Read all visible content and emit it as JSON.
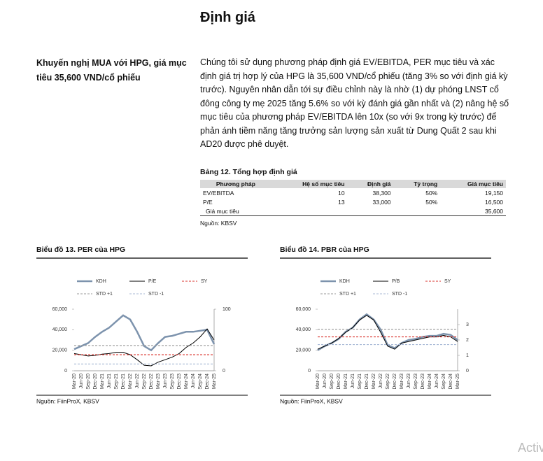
{
  "title": "Định giá",
  "sidebar": "Khuyến nghị MUA với HPG, giá mục tiêu 35,600 VND/cổ phiếu",
  "body": "Chúng tôi sử dụng phương pháp định giá EV/EBITDA, PER mục tiêu và xác định giá trị hợp lý của HPG là 35,600 VND/cổ phiếu (tăng 3% so với định giá kỳ trước). Nguyên nhân dẫn tới sự điều chỉnh này là nhờ (1) dự phóng LNST cổ đông công ty mẹ 2025 tăng 5.6% so với kỳ đánh giá gần nhất và (2) nâng hệ số mục tiêu của phương pháp EV/EBITDA lên 10x (so với 9x trong kỳ trước) để phản ánh tiềm năng tăng trưởng sản lượng sản xuất từ Dung Quất 2 sau khi AD20 được phê duyệt.",
  "table": {
    "title": "Bảng 12. Tổng hợp định giá",
    "headers": [
      "Phương pháp",
      "Hệ số mục tiêu",
      "Định giá",
      "Tỷ trọng",
      "Giá mục tiêu"
    ],
    "rows": [
      [
        "EV/EBITDA",
        "10",
        "38,300",
        "50%",
        "19,150"
      ],
      [
        "P/E",
        "13",
        "33,000",
        "50%",
        "16,500"
      ],
      [
        "Giá mục tiêu",
        null,
        null,
        null,
        "35,600"
      ]
    ],
    "source": "Nguồn: KBSV"
  },
  "chart_data": [
    {
      "type": "line",
      "title": "Biểu đồ 13. PER của HPG",
      "source": "Nguồn: FiinProX, KBSV",
      "categories": [
        "Mar-20",
        "Jun-20",
        "Sep-20",
        "Dec-20",
        "Mar-21",
        "Jun-21",
        "Sep-21",
        "Dec-21",
        "Mar-22",
        "Jun-22",
        "Sep-22",
        "Dec-22",
        "Mar-23",
        "Jun-23",
        "Sep-23",
        "Dec-23",
        "Mar-24",
        "Jun-24",
        "Sep-24",
        "Dec-24",
        "Mar-25"
      ],
      "ylim": [
        0,
        60000
      ],
      "yticks": [
        0,
        {
          "value": 20000,
          "label": "20,000"
        },
        {
          "value": 40000,
          "label": "40,000"
        },
        {
          "value": 60000,
          "label": "60,000"
        }
      ],
      "y2lim": [
        0,
        100
      ],
      "y2ticks": [
        0,
        100
      ],
      "series": [
        {
          "name": "KDH",
          "color": "#7d93ad",
          "style": "solid",
          "values": [
            21000,
            24000,
            27000,
            33000,
            38000,
            42000,
            48000,
            54000,
            50000,
            38000,
            24000,
            20000,
            27000,
            33000,
            34000,
            36000,
            38000,
            38000,
            39000,
            40000,
            26000
          ]
        },
        {
          "name": "P/E",
          "color": "#000000",
          "style": "solid",
          "axis": "y2",
          "values": [
            28,
            26,
            24,
            25,
            27,
            28,
            30,
            30,
            26,
            18,
            9,
            8,
            14,
            18,
            22,
            28,
            38,
            45,
            55,
            68,
            50
          ]
        },
        {
          "name": "SY",
          "color": "#d9312b",
          "style": "dashed",
          "axis": "y2",
          "values": [
            26,
            26,
            26,
            26,
            26,
            26,
            26,
            26,
            26,
            26,
            26,
            26,
            26,
            26,
            26,
            26,
            26,
            26,
            26,
            26,
            26
          ]
        },
        {
          "name": "STD +1",
          "color": "#999999",
          "style": "dashed",
          "axis": "y2",
          "values": [
            41,
            41,
            41,
            41,
            41,
            41,
            41,
            41,
            41,
            41,
            41,
            41,
            41,
            41,
            41,
            41,
            41,
            41,
            41,
            41,
            41
          ]
        },
        {
          "name": "STD -1",
          "color": "#a9b9d6",
          "style": "dashed",
          "axis": "y2",
          "values": [
            11,
            11,
            11,
            11,
            11,
            11,
            11,
            11,
            11,
            11,
            11,
            11,
            11,
            11,
            11,
            11,
            11,
            11,
            11,
            11,
            11
          ]
        }
      ]
    },
    {
      "type": "line",
      "title": "Biểu đồ 14. PBR của HPG",
      "source": "Nguồn: FiinProX, KBSV",
      "categories": [
        "Mar-20",
        "Jun-20",
        "Sep-20",
        "Dec-20",
        "Mar-21",
        "Jun-21",
        "Sep-21",
        "Dec-21",
        "Mar-22",
        "Jun-22",
        "Sep-22",
        "Dec-22",
        "Mar-23",
        "Jun-23",
        "Sep-23",
        "Dec-23",
        "Mar-24",
        "Jun-24",
        "Sep-24",
        "Dec-24",
        "Mar-25"
      ],
      "ylim": [
        0,
        60000
      ],
      "yticks": [
        0,
        {
          "value": 20000,
          "label": "20,000"
        },
        {
          "value": 40000,
          "label": "40,000"
        },
        {
          "value": 60000,
          "label": "60,000"
        }
      ],
      "y2lim": [
        0,
        4
      ],
      "y2ticks": [
        0,
        1,
        2,
        3
      ],
      "series": [
        {
          "name": "KDH",
          "color": "#7d93ad",
          "style": "solid",
          "values": [
            20000,
            24000,
            27000,
            31000,
            38000,
            42000,
            50000,
            55000,
            50000,
            40000,
            25000,
            22000,
            27000,
            30000,
            31000,
            33000,
            34000,
            34000,
            36000,
            35000,
            30000
          ]
        },
        {
          "name": "P/B",
          "color": "#000000",
          "style": "solid",
          "axis": "y2",
          "values": [
            1.4,
            1.6,
            1.8,
            2.1,
            2.5,
            2.8,
            3.3,
            3.6,
            3.3,
            2.5,
            1.6,
            1.4,
            1.8,
            1.9,
            2.0,
            2.1,
            2.2,
            2.2,
            2.3,
            2.2,
            1.9
          ]
        },
        {
          "name": "SY",
          "color": "#d9312b",
          "style": "dashed",
          "axis": "y2",
          "values": [
            2.2,
            2.2,
            2.2,
            2.2,
            2.2,
            2.2,
            2.2,
            2.2,
            2.2,
            2.2,
            2.2,
            2.2,
            2.2,
            2.2,
            2.2,
            2.2,
            2.2,
            2.2,
            2.2,
            2.2,
            2.2
          ]
        },
        {
          "name": "STD +1",
          "color": "#999999",
          "style": "dashed",
          "axis": "y2",
          "values": [
            2.7,
            2.7,
            2.7,
            2.7,
            2.7,
            2.7,
            2.7,
            2.7,
            2.7,
            2.7,
            2.7,
            2.7,
            2.7,
            2.7,
            2.7,
            2.7,
            2.7,
            2.7,
            2.7,
            2.7,
            2.7
          ]
        },
        {
          "name": "STD -1",
          "color": "#a9b9d6",
          "style": "dashed",
          "axis": "y2",
          "values": [
            1.7,
            1.7,
            1.7,
            1.7,
            1.7,
            1.7,
            1.7,
            1.7,
            1.7,
            1.7,
            1.7,
            1.7,
            1.7,
            1.7,
            1.7,
            1.7,
            1.7,
            1.7,
            1.7,
            1.7,
            1.7
          ]
        }
      ]
    }
  ],
  "watermark": "Activ"
}
